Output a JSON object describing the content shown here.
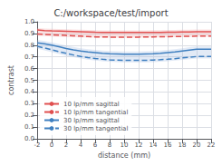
{
  "chart_data": {
    "type": "line",
    "title": "C:/workspace/test/import",
    "x_label": "distance (mm)",
    "y_label": "contrast",
    "x": [
      -2,
      -1,
      0,
      1,
      2,
      3,
      4,
      5,
      6,
      7,
      8,
      9,
      10,
      11,
      12,
      13,
      14,
      15,
      16,
      17,
      18,
      19,
      20,
      21,
      22
    ],
    "series": [
      {
        "name": "10 lp/mm sagittal",
        "color": "#e05050",
        "line_style": "solid",
        "values": [
          0.93,
          0.925,
          0.922,
          0.92,
          0.918,
          0.916,
          0.914,
          0.912,
          0.91,
          0.909,
          0.908,
          0.908,
          0.908,
          0.908,
          0.908,
          0.908,
          0.908,
          0.909,
          0.91,
          0.911,
          0.912,
          0.913,
          0.914,
          0.914,
          0.914
        ]
      },
      {
        "name": "10 lp/mm tangential",
        "color": "#e05050",
        "line_style": "dashed",
        "values": [
          0.895,
          0.892,
          0.889,
          0.886,
          0.883,
          0.88,
          0.877,
          0.874,
          0.871,
          0.87,
          0.869,
          0.869,
          0.869,
          0.869,
          0.869,
          0.87,
          0.871,
          0.872,
          0.873,
          0.874,
          0.875,
          0.876,
          0.877,
          0.877,
          0.877
        ]
      },
      {
        "name": "30 lp/mm sagittal",
        "color": "#4080c0",
        "line_style": "solid",
        "values": [
          0.82,
          0.812,
          0.8,
          0.786,
          0.772,
          0.76,
          0.75,
          0.742,
          0.736,
          0.73,
          0.726,
          0.724,
          0.722,
          0.722,
          0.722,
          0.724,
          0.726,
          0.73,
          0.736,
          0.742,
          0.75,
          0.758,
          0.765,
          0.765,
          0.765
        ]
      },
      {
        "name": "30 lp/mm tangential",
        "color": "#4080c0",
        "line_style": "dashed",
        "values": [
          0.79,
          0.776,
          0.76,
          0.744,
          0.73,
          0.716,
          0.704,
          0.694,
          0.686,
          0.68,
          0.675,
          0.672,
          0.67,
          0.67,
          0.67,
          0.671,
          0.673,
          0.676,
          0.68,
          0.685,
          0.691,
          0.697,
          0.703,
          0.703,
          0.703
        ]
      }
    ],
    "bands": [
      {
        "color": "#f0a0a0",
        "lower": [
          0.88,
          0.877,
          0.875,
          0.873,
          0.871,
          0.869,
          0.867,
          0.866,
          0.865,
          0.864,
          0.864,
          0.864,
          0.864,
          0.864,
          0.864,
          0.865,
          0.866,
          0.867,
          0.868,
          0.869,
          0.87,
          0.871,
          0.872,
          0.872,
          0.872
        ],
        "upper": [
          0.945,
          0.942,
          0.94,
          0.938,
          0.936,
          0.934,
          0.932,
          0.93,
          0.928,
          0.927,
          0.926,
          0.926,
          0.926,
          0.926,
          0.926,
          0.927,
          0.928,
          0.929,
          0.93,
          0.931,
          0.932,
          0.933,
          0.934,
          0.934,
          0.934
        ]
      },
      {
        "color": "#a0b8e0",
        "lower": [
          0.77,
          0.756,
          0.74,
          0.724,
          0.71,
          0.697,
          0.686,
          0.677,
          0.669,
          0.663,
          0.658,
          0.655,
          0.653,
          0.653,
          0.653,
          0.654,
          0.656,
          0.659,
          0.663,
          0.668,
          0.674,
          0.68,
          0.686,
          0.686,
          0.686
        ],
        "upper": [
          0.845,
          0.836,
          0.824,
          0.81,
          0.796,
          0.784,
          0.774,
          0.766,
          0.76,
          0.754,
          0.75,
          0.748,
          0.746,
          0.746,
          0.746,
          0.748,
          0.75,
          0.754,
          0.76,
          0.766,
          0.774,
          0.782,
          0.789,
          0.789,
          0.789
        ]
      }
    ],
    "xlim": [
      -2,
      22
    ],
    "xticks": [
      -2,
      0,
      2,
      4,
      6,
      8,
      10,
      12,
      14,
      16,
      18,
      20,
      22
    ],
    "ylim": [
      0,
      1.0
    ],
    "yticks": [
      {
        "value": 0,
        "label": "0.0"
      },
      0.1,
      0.2,
      0.3,
      0.4,
      0.5,
      0.6,
      0.7,
      0.8,
      0.9,
      {
        "value": 1.0,
        "label": "1.0"
      }
    ],
    "grid": true,
    "legend": "lower left"
  }
}
